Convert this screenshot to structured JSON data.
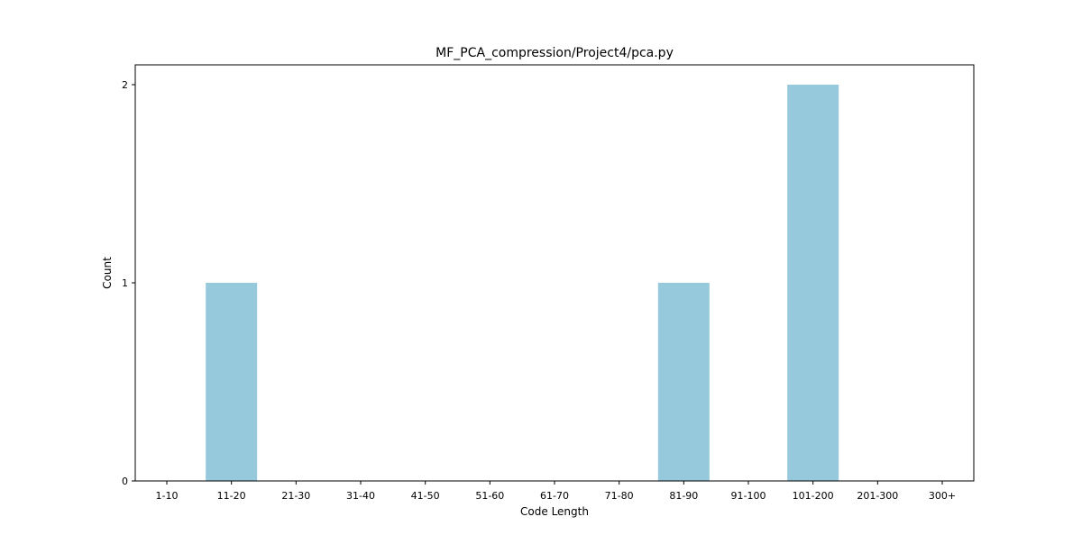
{
  "chart_data": {
    "type": "bar",
    "title": "MF_PCA_compression/Project4/pca.py",
    "xlabel": "Code Length",
    "ylabel": "Count",
    "categories": [
      "1-10",
      "11-20",
      "21-30",
      "31-40",
      "41-50",
      "51-60",
      "61-70",
      "71-80",
      "81-90",
      "91-100",
      "101-200",
      "201-300",
      "300+"
    ],
    "values": [
      0,
      1,
      0,
      0,
      0,
      0,
      0,
      0,
      1,
      0,
      2,
      0,
      0
    ],
    "ylim": [
      0,
      2.1
    ],
    "yticks": [
      0,
      1,
      2
    ],
    "bar_color": "#96c9dc",
    "grid": false,
    "legend": "none"
  }
}
